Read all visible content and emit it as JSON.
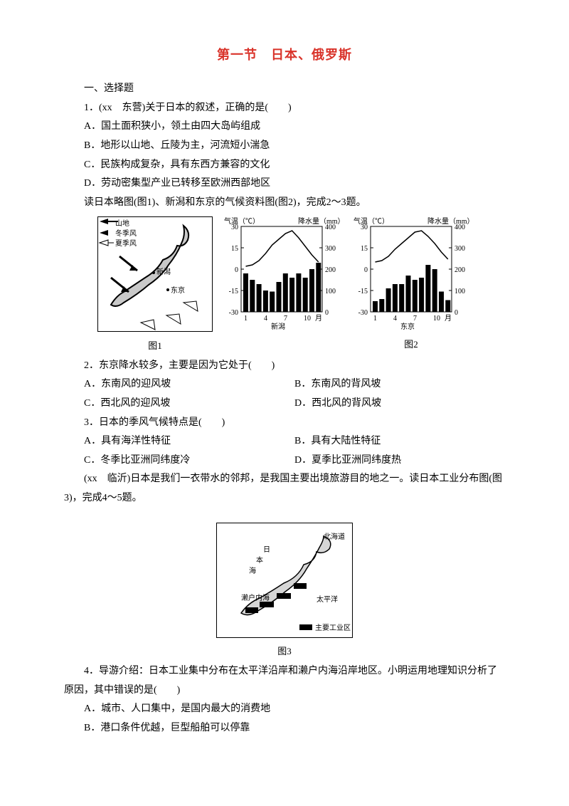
{
  "title": "第一节　日本、俄罗斯",
  "section1": "一、选择题",
  "q1": {
    "stem": "1．(xx　东营)关于日本的叙述，正确的是(　　)",
    "A": "A．国土面积狭小，领土由四大岛屿组成",
    "B": "B．地形以山地、丘陵为主，河流短小湍急",
    "C": "C．民族构成复杂，具有东西方兼容的文化",
    "D": "D．劳动密集型产业已转移至欧洲西部地区"
  },
  "lead1": "读日本略图(图1)、新潟和东京的气候资料图(图2)，完成2～3题。",
  "fig1": {
    "label": "图1",
    "legend_top": "山地",
    "legend_winter": "冬季风",
    "legend_summer": "夏季风",
    "city_n": "新潟",
    "city_t": "东京"
  },
  "fig2": {
    "label": "图2",
    "axis_left_label": "气温（℃）",
    "axis_right_label": "降水量（mm）",
    "city_n": "新潟",
    "city_t": "东京",
    "temp_ticks": [
      "30",
      "15",
      "0",
      "-15",
      "-30"
    ],
    "prec_ticks": [
      "400",
      "300",
      "200",
      "100",
      "0"
    ],
    "x_ticks": [
      "1",
      "4",
      "7",
      "10",
      "月"
    ],
    "niigata": {
      "precip": [
        180,
        150,
        130,
        100,
        95,
        140,
        180,
        160,
        180,
        160,
        200,
        230
      ],
      "temp": [
        2,
        3,
        6,
        11,
        17,
        21,
        25,
        27,
        22,
        16,
        10,
        5
      ]
    },
    "tokyo": {
      "precip": [
        50,
        60,
        110,
        130,
        130,
        170,
        150,
        160,
        220,
        200,
        95,
        55
      ],
      "temp": [
        5,
        6,
        9,
        14,
        18,
        22,
        26,
        27,
        23,
        18,
        12,
        7
      ]
    },
    "bar_color": "#000000",
    "line_color": "#000000",
    "bg_color": "#ffffff",
    "ylim_temp": [
      -30,
      30
    ],
    "ylim_prec": [
      0,
      400
    ]
  },
  "q2": {
    "stem": "2．东京降水较多，主要是因为它处于(　　)",
    "A": "A．东南风的迎风坡",
    "B": "B．东南风的背风坡",
    "C": "C．西北风的迎风坡",
    "D": "D．西北风的背风坡"
  },
  "q3": {
    "stem": "3．日本的季风气候特点是(　　)",
    "A": "A．具有海洋性特征",
    "B": "B．具有大陆性特征",
    "C": "C．冬季比亚洲同纬度冷",
    "D": "D．夏季比亚洲同纬度热"
  },
  "lead2": "(xx　临沂)日本是我们一衣带水的邻邦，是我国主要出境旅游目的地之一。读日本工业分布图(图3)，完成4～5题。",
  "fig3": {
    "label": "图3",
    "sea_j": "日",
    "sea_j2": "本",
    "sea_j3": "海",
    "pacific": "太平洋",
    "seto": "濑户内海",
    "hokkaido": "北海道",
    "legend": "主要工业区"
  },
  "q4": {
    "stem": "4．导游介绍：日本工业集中分布在太平洋沿岸和濑户内海沿岸地区。小明运用地理知识分析了原因，其中错误的是(　　)",
    "A": "A．城市、人口集中，是国内最大的消费地",
    "B": "B．港口条件优越，巨型船舶可以停靠"
  }
}
